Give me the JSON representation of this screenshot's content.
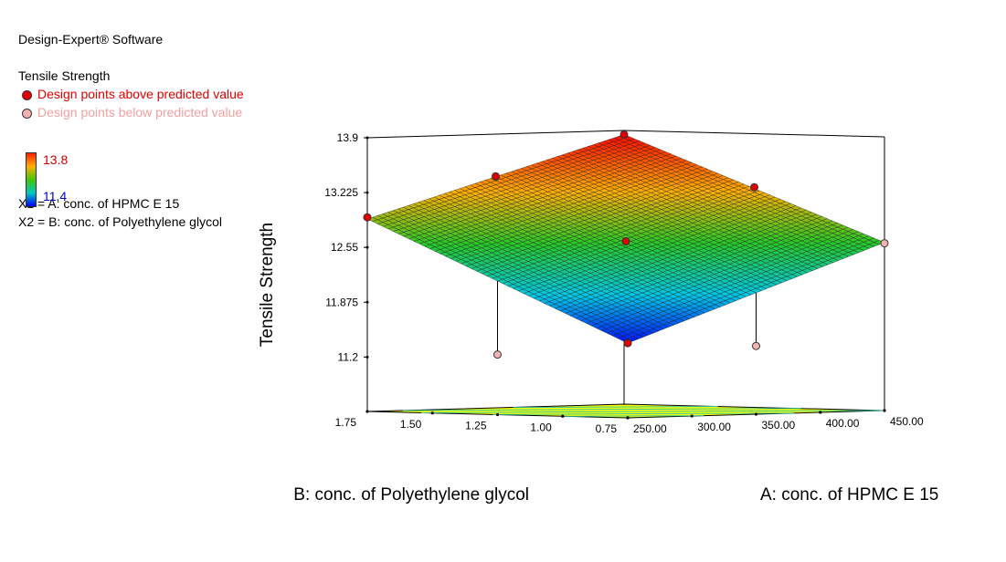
{
  "software": "Design-Expert® Software",
  "response_name": "Tensile Strength",
  "legend": {
    "above_label": "Design points above predicted value",
    "below_label": "Design points below predicted value",
    "above_color": "#e00000",
    "below_color": "#f4b3b3",
    "color_max": "13.8",
    "color_min": "11.4"
  },
  "factors": {
    "x1": "X1 = A: conc. of HPMC E 15",
    "x2": "X2 = B: conc. of Polyethylene glycol"
  },
  "chart_data": {
    "type": "surface3d",
    "xlabel": "A: conc. of HPMC E 15",
    "ylabel": "B: conc. of Polyethylene glycol",
    "zlabel": "Tensile Strength",
    "x_ticks": [
      "250.00",
      "300.00",
      "350.00",
      "400.00",
      "450.00"
    ],
    "y_ticks": [
      "0.75",
      "1.00",
      "1.25",
      "1.50",
      "1.75"
    ],
    "z_ticks": [
      "11.2",
      "11.875",
      "12.55",
      "13.225",
      "13.9"
    ],
    "xlim": [
      250,
      450
    ],
    "ylim": [
      0.75,
      1.75
    ],
    "zlim": [
      10.53,
      13.9
    ],
    "surface_corners": {
      "a_low_b_low": 11.45,
      "a_high_b_low": 12.6,
      "a_low_b_high": 12.9,
      "a_high_b_high": 13.85
    },
    "design_points": [
      {
        "a": 250,
        "b": 0.75,
        "z": 11.45,
        "type": "above"
      },
      {
        "a": 250,
        "b": 1.75,
        "z": 12.92,
        "type": "above"
      },
      {
        "a": 450,
        "b": 1.75,
        "z": 13.85,
        "type": "above"
      },
      {
        "a": 450,
        "b": 0.75,
        "z": 12.59,
        "type": "below"
      },
      {
        "a": 350,
        "b": 1.25,
        "z": 12.62,
        "type": "above"
      },
      {
        "a": 350,
        "b": 1.75,
        "z": 13.38,
        "type": "above"
      },
      {
        "a": 450,
        "b": 1.25,
        "z": 13.24,
        "type": "above"
      },
      {
        "a": 250,
        "b": 1.25,
        "z": 11.27,
        "type": "below"
      },
      {
        "a": 350,
        "b": 0.75,
        "z": 11.37,
        "type": "below"
      }
    ]
  }
}
